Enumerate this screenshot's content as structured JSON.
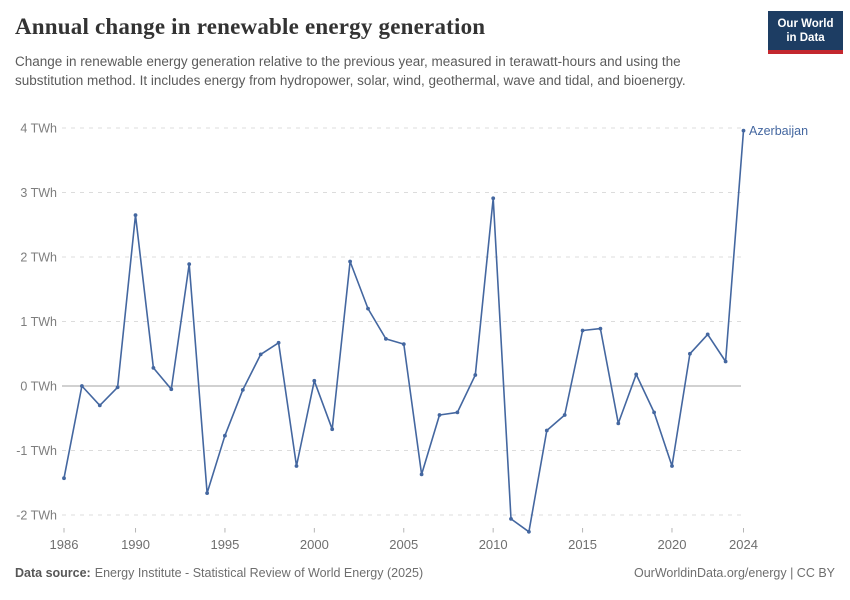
{
  "header": {
    "title": "Annual change in renewable energy generation",
    "subtitle": "Change in renewable energy generation relative to the previous year, measured in terawatt-hours and using the substitution method. It includes energy from hydropower, solar, wind, geothermal, wave and tidal, and bioenergy.",
    "logo": {
      "line1": "Our World",
      "line2": "in Data"
    }
  },
  "chart_data": {
    "type": "line",
    "title": "Annual change in renewable energy generation",
    "unit": "TWh",
    "end_label": "Azerbaijan",
    "x": [
      1986,
      1987,
      1988,
      1989,
      1990,
      1991,
      1992,
      1993,
      1994,
      1995,
      1996,
      1997,
      1998,
      1999,
      2000,
      2001,
      2002,
      2003,
      2004,
      2005,
      2006,
      2007,
      2008,
      2009,
      2010,
      2011,
      2012,
      2013,
      2014,
      2015,
      2016,
      2017,
      2018,
      2019,
      2020,
      2021,
      2022,
      2023,
      2024
    ],
    "series": [
      {
        "name": "Azerbaijan",
        "color": "#4467A0",
        "values": [
          -1.43,
          0.0,
          -0.3,
          -0.02,
          2.65,
          0.28,
          -0.05,
          1.89,
          -1.66,
          -0.77,
          -0.06,
          0.49,
          0.67,
          -1.24,
          0.08,
          -0.67,
          1.93,
          1.2,
          0.73,
          0.65,
          -1.37,
          -0.45,
          -0.41,
          0.17,
          2.91,
          -2.06,
          -2.26,
          -0.69,
          -0.45,
          0.86,
          0.89,
          -0.58,
          0.18,
          -0.41,
          -1.24,
          0.5,
          0.8,
          0.38,
          3.96
        ]
      }
    ],
    "x_ticks": [
      {
        "value": 1986,
        "label": "1986"
      },
      {
        "value": 1990,
        "label": "1990"
      },
      {
        "value": 1995,
        "label": "1995"
      },
      {
        "value": 2000,
        "label": "2000"
      },
      {
        "value": 2005,
        "label": "2005"
      },
      {
        "value": 2010,
        "label": "2010"
      },
      {
        "value": 2015,
        "label": "2015"
      },
      {
        "value": 2020,
        "label": "2020"
      },
      {
        "value": 2024,
        "label": "2024"
      }
    ],
    "y_ticks": [
      {
        "value": 4,
        "label": "4 TWh"
      },
      {
        "value": 3,
        "label": "3 TWh"
      },
      {
        "value": 2,
        "label": "2 TWh"
      },
      {
        "value": 1,
        "label": "1 TWh"
      },
      {
        "value": 0,
        "label": "0 TWh"
      },
      {
        "value": -1,
        "label": "-1 TWh"
      },
      {
        "value": -2,
        "label": "-2 TWh"
      }
    ],
    "xlim": [
      1986,
      2024
    ],
    "ylim": [
      -2.4,
      4.2
    ],
    "grid": "horizontal dashed, solid zero line",
    "legend_position": "end-of-line label"
  },
  "footer": {
    "source_label": "Data source:",
    "source_text": "Energy Institute - Statistical Review of World Energy (2025)",
    "credit": "OurWorldinData.org/energy | CC BY"
  },
  "colors": {
    "line": "#4467A0",
    "gridline": "#dcdcdc",
    "zero_line": "#a3a3a3",
    "tick": "#b5b5b5",
    "logo_bg": "#1d3d63",
    "logo_red": "#c3272e"
  }
}
